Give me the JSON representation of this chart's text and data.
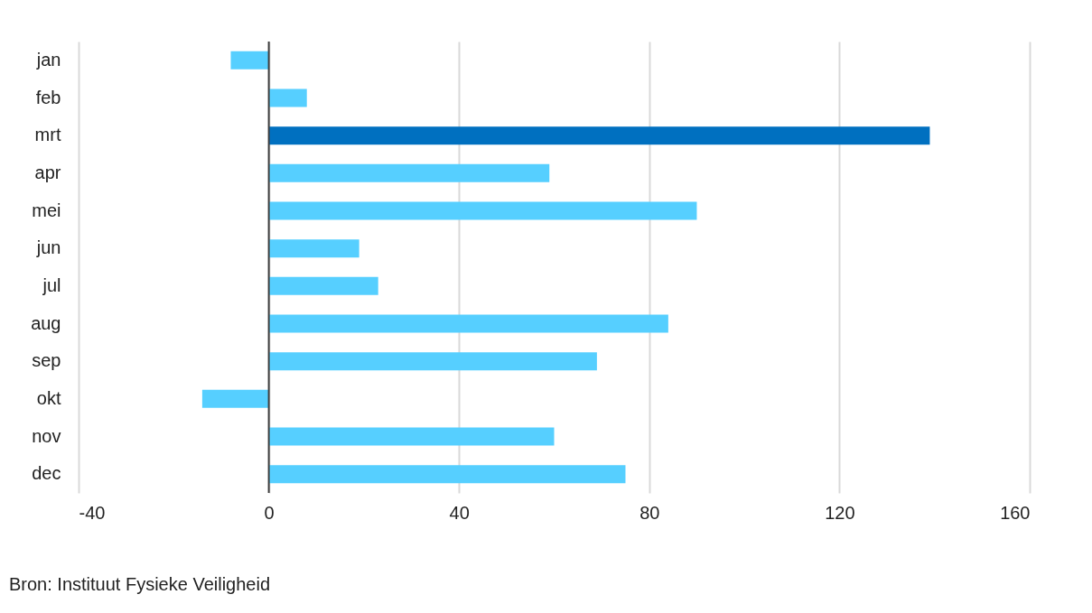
{
  "chart_data": {
    "type": "bar",
    "orientation": "horizontal",
    "categories": [
      "jan",
      "feb",
      "mrt",
      "apr",
      "mei",
      "jun",
      "jul",
      "aug",
      "sep",
      "okt",
      "nov",
      "dec"
    ],
    "values": [
      -8,
      8,
      139,
      59,
      90,
      19,
      23,
      84,
      69,
      -14,
      60,
      75
    ],
    "colors": [
      "#56cfff",
      "#56cfff",
      "#0070c0",
      "#56cfff",
      "#56cfff",
      "#56cfff",
      "#56cfff",
      "#56cfff",
      "#56cfff",
      "#56cfff",
      "#56cfff",
      "#56cfff"
    ],
    "xlim": [
      -40,
      160
    ],
    "xticks": [
      -40,
      0,
      40,
      80,
      120,
      160
    ],
    "grid": "x",
    "ref_lines": [
      {
        "axis": "x",
        "value": 0,
        "color": "#404040"
      }
    ],
    "annotations": [
      "Bron: Instituut Fysieke Veiligheid"
    ]
  }
}
